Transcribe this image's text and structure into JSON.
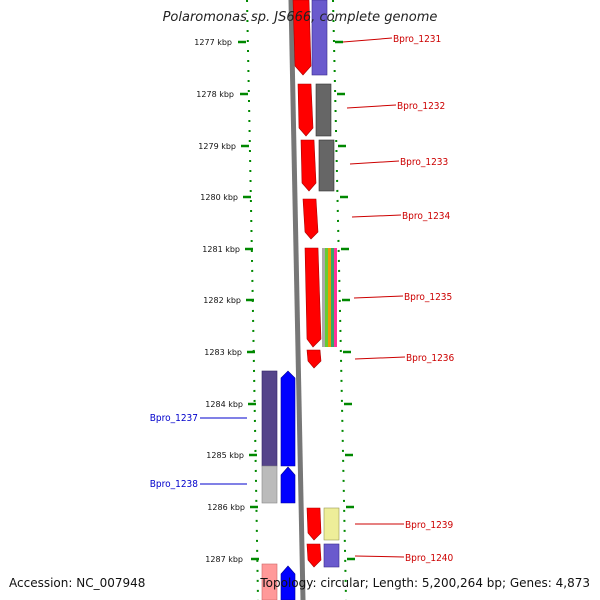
{
  "title": "Polaromonas sp. JS666, complete genome",
  "accession": "Accession: NC_007948",
  "summary": "Topology: circular; Length: 5,200,264 bp; Genes: 4,873",
  "colors": {
    "forward_label": "#cc0000",
    "reverse_label": "#0000cc",
    "backbone": "#777777",
    "tick": "#008800",
    "cog_red": "#ff0000",
    "cog_blue": "#0000ff",
    "cog_purple": "#6a5acd",
    "cog_gray": "#666666",
    "cog_lightgray": "#bbbbbb",
    "cog_yellow": "#eeee99",
    "cog_pink": "#ff9999"
  },
  "scale_labels": [
    "1277 kbp",
    "1278 kbp",
    "1279 kbp",
    "1280 kbp",
    "1281 kbp",
    "1282 kbp",
    "1283 kbp",
    "1284 kbp",
    "1285 kbp",
    "1286 kbp",
    "1287 kbp"
  ],
  "genes": [
    {
      "name": "Bpro_1231",
      "strand": "forward"
    },
    {
      "name": "Bpro_1232",
      "strand": "forward"
    },
    {
      "name": "Bpro_1233",
      "strand": "forward"
    },
    {
      "name": "Bpro_1234",
      "strand": "forward"
    },
    {
      "name": "Bpro_1235",
      "strand": "forward"
    },
    {
      "name": "Bpro_1236",
      "strand": "forward"
    },
    {
      "name": "Bpro_1237",
      "strand": "reverse"
    },
    {
      "name": "Bpro_1238",
      "strand": "reverse"
    },
    {
      "name": "Bpro_1239",
      "strand": "forward"
    },
    {
      "name": "Bpro_1240",
      "strand": "forward"
    }
  ]
}
